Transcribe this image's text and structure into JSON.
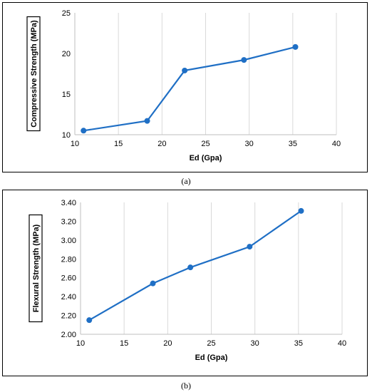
{
  "chart_data": [
    {
      "type": "line",
      "title": "",
      "xlabel": "Ed (Gpa)",
      "ylabel": "Compressive Strength (MPa)",
      "xlim": [
        10,
        40
      ],
      "ylim": [
        10,
        25
      ],
      "x_ticks": [
        "10",
        "15",
        "20",
        "25",
        "30",
        "35",
        "40"
      ],
      "y_ticks": [
        "10",
        "15",
        "20",
        "25"
      ],
      "grid": "vertical",
      "series": [
        {
          "x": [
            11.0,
            18.3,
            22.6,
            29.4,
            35.3
          ],
          "values": [
            10.5,
            11.7,
            17.9,
            19.2,
            20.8
          ]
        }
      ],
      "caption": "(a)",
      "color": "#1f6fc5"
    },
    {
      "type": "line",
      "title": "",
      "xlabel": "Ed (Gpa)",
      "ylabel": "Flexural  Strength (MPa)",
      "xlim": [
        10,
        40
      ],
      "ylim": [
        2.0,
        3.4
      ],
      "x_ticks": [
        "10",
        "15",
        "20",
        "25",
        "30",
        "35",
        "40"
      ],
      "y_ticks": [
        "2.00",
        "2.20",
        "2.40",
        "2.60",
        "2.80",
        "3.00",
        "3.20",
        "3.40"
      ],
      "grid": "vertical",
      "series": [
        {
          "x": [
            11.0,
            18.3,
            22.6,
            29.4,
            35.3
          ],
          "values": [
            2.15,
            2.54,
            2.71,
            2.93,
            3.31
          ]
        }
      ],
      "caption": "(b)",
      "color": "#1f6fc5"
    }
  ]
}
